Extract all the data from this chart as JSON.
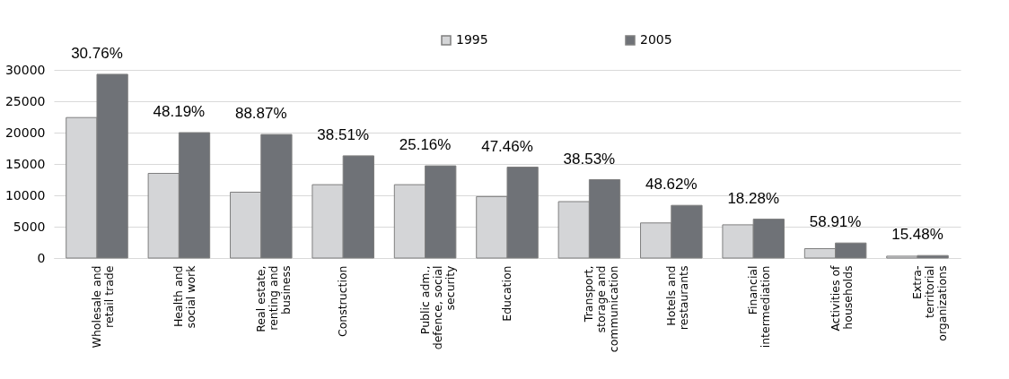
{
  "chart_data": {
    "type": "bar",
    "categories": [
      "Wholesale and\nretail trade",
      "Health and\nsocial work",
      "Real estate,\nrenting and\nbusiness",
      "Construction",
      "Public adm.,\ndefence, social\nsecurity",
      "Education",
      "Transport,\nstorage and\ncommunication",
      "Hotels and\nrestaurants",
      "Financial\nintermediation",
      "Activities of\nhouseholds",
      "Extra-\nterritorial\norganizations"
    ],
    "series": [
      {
        "name": "1995",
        "color": "#d4d5d7",
        "values": [
          22400,
          13500,
          10500,
          11700,
          11700,
          9800,
          9000,
          5600,
          5300,
          1500,
          300
        ]
      },
      {
        "name": "2005",
        "color": "#6f7277",
        "values": [
          29300,
          20000,
          19700,
          16300,
          14700,
          14500,
          12500,
          8400,
          6200,
          2400,
          400
        ]
      }
    ],
    "annotations": [
      {
        "text": "30.76%",
        "x": "Wholesale and\nretail trade",
        "y": 29300
      },
      {
        "text": "48.19%",
        "x": "Health and\nsocial work",
        "y": 20000
      },
      {
        "text": "88.87%",
        "x": "Real estate,\nrenting and\nbusiness",
        "y": 19700
      },
      {
        "text": "38.51%",
        "x": "Construction",
        "y": 16300
      },
      {
        "text": "25.16%",
        "x": "Public adm.,\ndefence, social\nsecurity",
        "y": 14700
      },
      {
        "text": "47.46%",
        "x": "Education",
        "y": 14500
      },
      {
        "text": "38.53%",
        "x": "Transport,\nstorage and\ncommunication",
        "y": 12500
      },
      {
        "text": "48.62%",
        "x": "Hotels and\nrestaurants",
        "y": 8400
      },
      {
        "text": "18.28%",
        "x": "Financial\nintermediation",
        "y": 6200
      },
      {
        "text": "58.91%",
        "x": "Activities of\nhouseholds",
        "y": 2400
      },
      {
        "text": "15.48%",
        "x": "Extra-\nterritorial\norganizations",
        "y": 400
      }
    ],
    "ylim": [
      0,
      30000
    ],
    "yticks": [
      0,
      5000,
      10000,
      15000,
      20000,
      25000,
      30000
    ],
    "grid": "y",
    "legend": "top"
  }
}
